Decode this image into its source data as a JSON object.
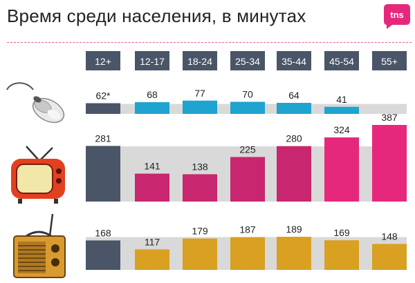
{
  "title": "Время среди населения, в минутах",
  "logo": {
    "text": "tns",
    "color": "#e6287c"
  },
  "icons": [
    "computer-mouse-icon",
    "tv-icon",
    "radio-icon"
  ],
  "colors": {
    "header_bg": "#4a5568",
    "track": "#d9d9d9",
    "total": "#4a5568",
    "internet": "#1ea4cf",
    "tv": "#c8266e",
    "tv_top": "#e6287c",
    "radio": "#d9a021"
  },
  "chart_data": {
    "type": "bar",
    "title": "Время среди населения, в минутах",
    "categories": [
      "12+",
      "12-17",
      "18-24",
      "25-34",
      "35-44",
      "45-54",
      "55+"
    ],
    "series": [
      {
        "name": "internet",
        "values": [
          62,
          68,
          77,
          70,
          64,
          41,
          null
        ],
        "labels": [
          "62*",
          "68",
          "77",
          "70",
          "64",
          "41",
          ""
        ],
        "ylim": [
          0,
          80
        ]
      },
      {
        "name": "tv",
        "values": [
          281,
          141,
          138,
          225,
          280,
          324,
          387
        ],
        "labels": [
          "281",
          "141",
          "138",
          "225",
          "280",
          "324",
          "387"
        ],
        "ylim": [
          0,
          387
        ]
      },
      {
        "name": "radio",
        "values": [
          168,
          117,
          179,
          187,
          189,
          169,
          148
        ],
        "labels": [
          "168",
          "117",
          "179",
          "187",
          "189",
          "169",
          "148"
        ],
        "ylim": [
          0,
          260
        ]
      }
    ]
  }
}
